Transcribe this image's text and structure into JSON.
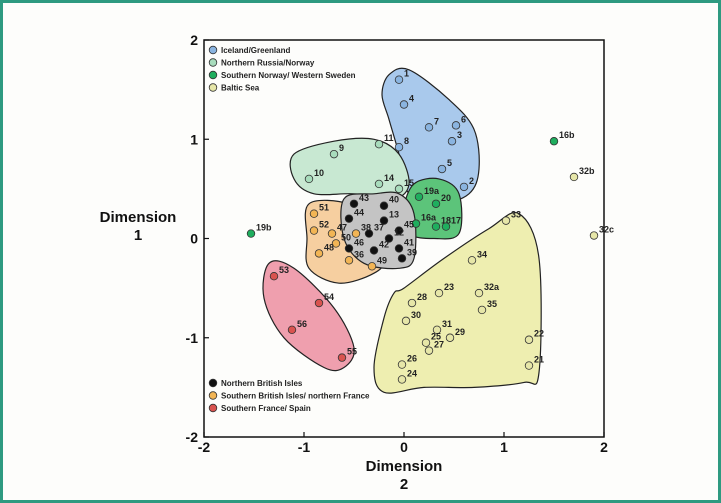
{
  "chart_data": {
    "type": "scatter",
    "xlabel": "Dimension\n2",
    "ylabel": "Dimension\n1",
    "xlim": [
      -2,
      2
    ],
    "ylim": [
      -2,
      2
    ],
    "xticks": [
      "-2",
      "-1",
      "0",
      "1",
      "2"
    ],
    "yticks": [
      "2",
      "1",
      "0",
      "-1",
      "-2"
    ],
    "grid": false,
    "legend_top": [
      {
        "name": "Iceland/Greenland",
        "color": "#8ab4e0"
      },
      {
        "name": "Northern Russia/Norway",
        "color": "#a8dcbc"
      },
      {
        "name": "Southern Norway/ Western Sweden",
        "color": "#1fae5e"
      },
      {
        "name": "Baltic Sea",
        "color": "#e6e6a8"
      }
    ],
    "legend_bottom": [
      {
        "name": "Northern British Isles",
        "color": "#111111"
      },
      {
        "name": "Southern British Isles/ northern France",
        "color": "#f2b555"
      },
      {
        "name": "Southern France/ Spain",
        "color": "#d9534f"
      }
    ],
    "regions": [
      {
        "group": "Iceland/Greenland",
        "fill": "#a9c9ec",
        "points": [
          [
            -0.15,
            1.65
          ],
          [
            0.05,
            1.7
          ],
          [
            0.45,
            1.4
          ],
          [
            0.7,
            1.1
          ],
          [
            0.75,
            0.7
          ],
          [
            0.65,
            0.45
          ],
          [
            0.35,
            0.35
          ],
          [
            0.05,
            0.45
          ],
          [
            -0.05,
            0.85
          ],
          [
            -0.15,
            1.2
          ],
          [
            -0.22,
            1.45
          ]
        ]
      },
      {
        "group": "Northern Russia/Norway",
        "fill": "#c8e8d2",
        "points": [
          [
            -1.1,
            0.85
          ],
          [
            -0.7,
            0.98
          ],
          [
            -0.3,
            1.0
          ],
          [
            -0.05,
            0.85
          ],
          [
            0.05,
            0.55
          ],
          [
            -0.1,
            0.4
          ],
          [
            -0.5,
            0.45
          ],
          [
            -0.9,
            0.45
          ],
          [
            -1.1,
            0.6
          ]
        ]
      },
      {
        "group": "Southern Norway/ Western Sweden",
        "fill": "#5cc47a",
        "points": [
          [
            0.1,
            0.55
          ],
          [
            0.35,
            0.6
          ],
          [
            0.55,
            0.45
          ],
          [
            0.55,
            0.05
          ],
          [
            0.3,
            0.0
          ],
          [
            0.05,
            0.05
          ],
          [
            0.0,
            0.3
          ]
        ]
      },
      {
        "group": "Baltic Sea",
        "fill": "#eeeeb0",
        "points": [
          [
            0.0,
            -0.5
          ],
          [
            0.4,
            -0.2
          ],
          [
            0.85,
            0.1
          ],
          [
            1.15,
            0.25
          ],
          [
            1.35,
            -0.2
          ],
          [
            1.35,
            -1.35
          ],
          [
            1.2,
            -1.45
          ],
          [
            0.7,
            -1.5
          ],
          [
            0.2,
            -1.5
          ],
          [
            -0.2,
            -1.55
          ],
          [
            -0.3,
            -1.3
          ],
          [
            -0.2,
            -0.8
          ],
          [
            -0.1,
            -0.55
          ]
        ]
      },
      {
        "group": "Southern British Isles/ northern France",
        "fill": "#f6cfa0",
        "points": [
          [
            -0.95,
            0.35
          ],
          [
            -0.55,
            0.35
          ],
          [
            -0.3,
            0.15
          ],
          [
            -0.2,
            -0.2
          ],
          [
            -0.3,
            -0.35
          ],
          [
            -0.65,
            -0.45
          ],
          [
            -0.95,
            -0.3
          ],
          [
            -0.97,
            0.0
          ]
        ]
      },
      {
        "group": "Northern British Isles",
        "fill": "#c4c4c4",
        "points": [
          [
            -0.6,
            0.4
          ],
          [
            -0.3,
            0.45
          ],
          [
            -0.05,
            0.45
          ],
          [
            0.1,
            0.25
          ],
          [
            0.1,
            -0.2
          ],
          [
            -0.05,
            -0.3
          ],
          [
            -0.4,
            -0.25
          ],
          [
            -0.6,
            0.0
          ]
        ]
      },
      {
        "group": "Southern France/ Spain",
        "fill": "#ef9fae",
        "points": [
          [
            -1.35,
            -0.25
          ],
          [
            -1.1,
            -0.3
          ],
          [
            -0.7,
            -0.7
          ],
          [
            -0.5,
            -1.1
          ],
          [
            -0.6,
            -1.3
          ],
          [
            -0.8,
            -1.3
          ],
          [
            -1.2,
            -1.0
          ],
          [
            -1.4,
            -0.6
          ]
        ]
      }
    ],
    "points": [
      {
        "label": "1",
        "x": -0.05,
        "y": 1.6,
        "group": "Iceland/Greenland"
      },
      {
        "label": "4",
        "x": 0.0,
        "y": 1.35,
        "group": "Iceland/Greenland"
      },
      {
        "label": "7",
        "x": 0.25,
        "y": 1.12,
        "group": "Iceland/Greenland"
      },
      {
        "label": "6",
        "x": 0.52,
        "y": 1.14,
        "group": "Iceland/Greenland"
      },
      {
        "label": "3",
        "x": 0.48,
        "y": 0.98,
        "group": "Iceland/Greenland"
      },
      {
        "label": "8",
        "x": -0.05,
        "y": 0.92,
        "group": "Iceland/Greenland"
      },
      {
        "label": "5",
        "x": 0.38,
        "y": 0.7,
        "group": "Iceland/Greenland"
      },
      {
        "label": "2",
        "x": 0.6,
        "y": 0.52,
        "group": "Iceland/Greenland"
      },
      {
        "label": "9",
        "x": -0.7,
        "y": 0.85,
        "group": "Northern Russia/Norway"
      },
      {
        "label": "11",
        "x": -0.25,
        "y": 0.95,
        "group": "Northern Russia/Norway"
      },
      {
        "label": "10",
        "x": -0.95,
        "y": 0.6,
        "group": "Northern Russia/Norway"
      },
      {
        "label": "14",
        "x": -0.25,
        "y": 0.55,
        "group": "Northern Russia/Norway"
      },
      {
        "label": "15",
        "x": -0.05,
        "y": 0.5,
        "group": "Northern Russia/Norway"
      },
      {
        "label": "16b",
        "x": 1.5,
        "y": 0.98,
        "group": "Southern Norway/ Western Sweden"
      },
      {
        "label": "19a",
        "x": 0.15,
        "y": 0.42,
        "group": "Southern Norway/ Western Sweden"
      },
      {
        "label": "20",
        "x": 0.32,
        "y": 0.35,
        "group": "Southern Norway/ Western Sweden"
      },
      {
        "label": "16a",
        "x": 0.12,
        "y": 0.15,
        "group": "Southern Norway/ Western Sweden"
      },
      {
        "label": "18",
        "x": 0.32,
        "y": 0.12,
        "group": "Southern Norway/ Western Sweden"
      },
      {
        "label": "17",
        "x": 0.42,
        "y": 0.12,
        "group": "Southern Norway/ Western Sweden"
      },
      {
        "label": "19b",
        "x": -1.53,
        "y": 0.05,
        "group": "Southern Norway/ Western Sweden"
      },
      {
        "label": "32b",
        "x": 1.7,
        "y": 0.62,
        "group": "Baltic Sea"
      },
      {
        "label": "32c",
        "x": 1.9,
        "y": 0.03,
        "group": "Baltic Sea"
      },
      {
        "label": "33",
        "x": 1.02,
        "y": 0.18,
        "group": "Baltic Sea"
      },
      {
        "label": "34",
        "x": 0.68,
        "y": -0.22,
        "group": "Baltic Sea"
      },
      {
        "label": "32a",
        "x": 0.75,
        "y": -0.55,
        "group": "Baltic Sea"
      },
      {
        "label": "23",
        "x": 0.35,
        "y": -0.55,
        "group": "Baltic Sea"
      },
      {
        "label": "28",
        "x": 0.08,
        "y": -0.65,
        "group": "Baltic Sea"
      },
      {
        "label": "35",
        "x": 0.78,
        "y": -0.72,
        "group": "Baltic Sea"
      },
      {
        "label": "30",
        "x": 0.02,
        "y": -0.83,
        "group": "Baltic Sea"
      },
      {
        "label": "31",
        "x": 0.33,
        "y": -0.92,
        "group": "Baltic Sea"
      },
      {
        "label": "29",
        "x": 0.46,
        "y": -1.0,
        "group": "Baltic Sea"
      },
      {
        "label": "25",
        "x": 0.22,
        "y": -1.05,
        "group": "Baltic Sea"
      },
      {
        "label": "22",
        "x": 1.25,
        "y": -1.02,
        "group": "Baltic Sea"
      },
      {
        "label": "27",
        "x": 0.25,
        "y": -1.13,
        "group": "Baltic Sea"
      },
      {
        "label": "26",
        "x": -0.02,
        "y": -1.27,
        "group": "Baltic Sea"
      },
      {
        "label": "21",
        "x": 1.25,
        "y": -1.28,
        "group": "Baltic Sea"
      },
      {
        "label": "24",
        "x": -0.02,
        "y": -1.42,
        "group": "Baltic Sea"
      },
      {
        "label": "43",
        "x": -0.5,
        "y": 0.35,
        "group": "Northern British Isles"
      },
      {
        "label": "40",
        "x": -0.2,
        "y": 0.33,
        "group": "Northern British Isles"
      },
      {
        "label": "44",
        "x": -0.55,
        "y": 0.2,
        "group": "Northern British Isles"
      },
      {
        "label": "13",
        "x": -0.2,
        "y": 0.18,
        "group": "Northern British Isles"
      },
      {
        "label": "37",
        "x": -0.35,
        "y": 0.05,
        "group": "Northern British Isles"
      },
      {
        "label": "45",
        "x": -0.05,
        "y": 0.08,
        "group": "Northern British Isles"
      },
      {
        "label": "12",
        "x": -0.15,
        "y": 0.0,
        "group": "Northern British Isles"
      },
      {
        "label": "42",
        "x": -0.3,
        "y": -0.12,
        "group": "Northern British Isles"
      },
      {
        "label": "41",
        "x": -0.05,
        "y": -0.1,
        "group": "Northern British Isles"
      },
      {
        "label": "39",
        "x": -0.02,
        "y": -0.2,
        "group": "Northern British Isles"
      },
      {
        "label": "46",
        "x": -0.55,
        "y": -0.1,
        "group": "Northern British Isles"
      },
      {
        "label": "51",
        "x": -0.9,
        "y": 0.25,
        "group": "Southern British Isles/ northern France"
      },
      {
        "label": "52",
        "x": -0.9,
        "y": 0.08,
        "group": "Southern British Isles/ northern France"
      },
      {
        "label": "47",
        "x": -0.72,
        "y": 0.05,
        "group": "Southern British Isles/ northern France"
      },
      {
        "label": "38",
        "x": -0.48,
        "y": 0.05,
        "group": "Southern British Isles/ northern France"
      },
      {
        "label": "50",
        "x": -0.68,
        "y": -0.05,
        "group": "Southern British Isles/ northern France"
      },
      {
        "label": "48",
        "x": -0.85,
        "y": -0.15,
        "group": "Southern British Isles/ northern France"
      },
      {
        "label": "36",
        "x": -0.55,
        "y": -0.22,
        "group": "Southern British Isles/ northern France"
      },
      {
        "label": "49",
        "x": -0.32,
        "y": -0.28,
        "group": "Southern British Isles/ northern France"
      },
      {
        "label": "53",
        "x": -1.3,
        "y": -0.38,
        "group": "Southern France/ Spain"
      },
      {
        "label": "54",
        "x": -0.85,
        "y": -0.65,
        "group": "Southern France/ Spain"
      },
      {
        "label": "56",
        "x": -1.12,
        "y": -0.92,
        "group": "Southern France/ Spain"
      },
      {
        "label": "55",
        "x": -0.62,
        "y": -1.2,
        "group": "Southern France/ Spain"
      }
    ]
  }
}
